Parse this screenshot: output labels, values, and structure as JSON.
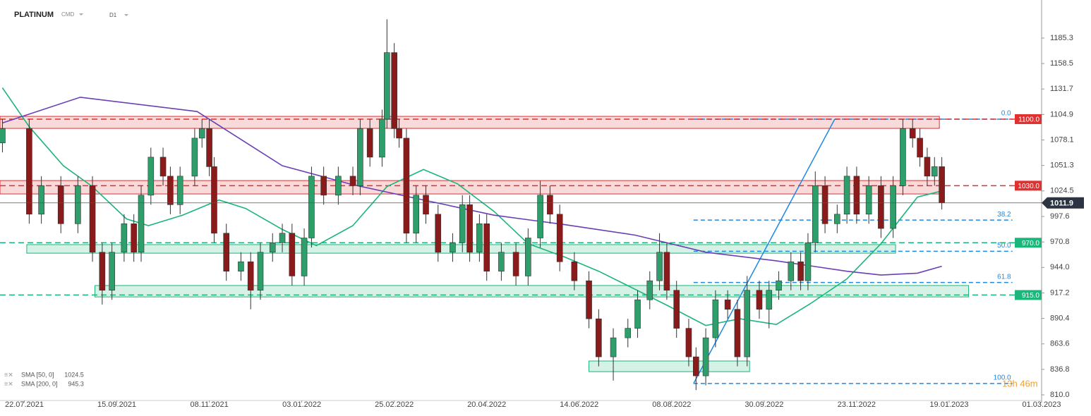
{
  "chart_data": {
    "type": "candlestick",
    "header": {
      "symbol": "PLATINUM",
      "market": "CMD",
      "interval": "D1"
    },
    "countdown": "13h 46m",
    "up_color": "#2e9e6b",
    "down_color": "#8b1a1a",
    "x": [
      -9,
      2,
      7,
      15,
      22,
      28,
      32,
      36,
      41,
      45,
      48,
      52,
      57,
      60,
      64,
      70,
      73,
      76,
      78,
      83,
      89,
      93,
      97,
      102,
      106,
      110,
      115,
      118,
      123,
      129,
      135,
      138,
      142,
      147,
      149,
      152,
      154,
      157,
      161,
      165,
      170,
      176,
      180,
      183,
      187,
      190,
      196,
      202,
      207,
      212,
      216,
      220,
      226,
      232,
      236,
      242,
      248,
      252,
      257,
      261,
      264,
      268,
      273,
      276,
      280,
      284,
      289,
      293,
      297,
      302,
      306,
      310,
      315,
      319,
      322,
      325,
      329,
      334,
      338,
      342,
      347,
      352,
      357,
      361,
      365,
      368,
      371,
      374,
      377
    ],
    "open": [
      1075,
      1090,
      1000,
      1030,
      990,
      1030,
      960,
      920,
      960,
      990,
      960,
      1020,
      1060,
      1040,
      1010,
      1040,
      1080,
      1090,
      1050,
      980,
      940,
      950,
      920,
      960,
      970,
      980,
      935,
      975,
      1040,
      1020,
      1040,
      1030,
      1090,
      1060,
      1100,
      1170,
      1090,
      1080,
      980,
      1020,
      1000,
      960,
      970,
      1010,
      960,
      990,
      940,
      960,
      935,
      975,
      1020,
      1000,
      950,
      930,
      890,
      850,
      870,
      880,
      910,
      930,
      960,
      920,
      880,
      850,
      830,
      870,
      910,
      900,
      850,
      920,
      900,
      920,
      930,
      950,
      930,
      970,
      1030,
      990,
      1000,
      1040,
      1000,
      1030,
      985,
      1030,
      1090,
      1080,
      1060,
      1040,
      1050
    ],
    "high": [
      1100,
      1100,
      1040,
      1040,
      1040,
      1040,
      970,
      970,
      1000,
      1000,
      1030,
      1070,
      1070,
      1050,
      1050,
      1090,
      1100,
      1100,
      1060,
      990,
      960,
      960,
      970,
      980,
      990,
      990,
      985,
      1050,
      1050,
      1050,
      1050,
      1100,
      1100,
      1110,
      1205,
      1180,
      1100,
      1090,
      1030,
      1030,
      1010,
      980,
      1020,
      1020,
      1000,
      1000,
      970,
      970,
      985,
      1035,
      1030,
      1010,
      960,
      940,
      900,
      880,
      890,
      920,
      940,
      980,
      970,
      930,
      890,
      860,
      880,
      920,
      920,
      910,
      935,
      930,
      930,
      940,
      960,
      960,
      980,
      1045,
      1040,
      1010,
      1050,
      1050,
      1040,
      1040,
      1040,
      1100,
      1100,
      1090,
      1070,
      1060,
      1060
    ],
    "low": [
      1065,
      990,
      990,
      980,
      980,
      950,
      905,
      910,
      950,
      950,
      950,
      1010,
      1030,
      1000,
      1000,
      1030,
      1070,
      1040,
      970,
      930,
      930,
      900,
      910,
      950,
      960,
      925,
      925,
      965,
      1010,
      1010,
      1020,
      1020,
      1050,
      1050,
      1090,
      1080,
      1070,
      970,
      970,
      990,
      950,
      950,
      960,
      950,
      950,
      930,
      930,
      925,
      925,
      965,
      990,
      940,
      920,
      880,
      840,
      825,
      860,
      870,
      900,
      920,
      910,
      870,
      840,
      815,
      820,
      860,
      890,
      840,
      840,
      890,
      880,
      910,
      920,
      920,
      920,
      960,
      980,
      980,
      990,
      990,
      990,
      975,
      975,
      1020,
      1070,
      1050,
      1030,
      1030,
      1005
    ],
    "close": [
      1090,
      1000,
      1030,
      990,
      1030,
      960,
      920,
      960,
      990,
      960,
      1020,
      1060,
      1040,
      1010,
      1040,
      1080,
      1090,
      1050,
      980,
      940,
      950,
      920,
      960,
      970,
      980,
      935,
      975,
      1040,
      1020,
      1040,
      1030,
      1090,
      1060,
      1100,
      1170,
      1090,
      1080,
      980,
      1020,
      1000,
      960,
      970,
      1010,
      960,
      990,
      940,
      960,
      935,
      975,
      1020,
      1000,
      950,
      930,
      890,
      850,
      870,
      880,
      910,
      930,
      960,
      920,
      880,
      850,
      830,
      870,
      910,
      900,
      850,
      920,
      900,
      920,
      930,
      950,
      930,
      970,
      1030,
      990,
      1000,
      1040,
      1000,
      1030,
      985,
      1030,
      1090,
      1080,
      1060,
      1040,
      1050,
      1011.9
    ],
    "series": [
      {
        "name": "SMA [50, 0]",
        "color": "#1cb57a",
        "x": [
          -9,
          2,
          16,
          28,
          42,
          51,
          65,
          80,
          91,
          106,
          120,
          135,
          149,
          164,
          178,
          193,
          207,
          222,
          236,
          251,
          265,
          280,
          294,
          309,
          323,
          338,
          352,
          367,
          377
        ],
        "values": [
          1133,
          1092,
          1051,
          1029,
          995,
          988,
          999,
          1015,
          1006,
          984,
          967,
          988,
          1029,
          1047,
          1032,
          1003,
          969,
          955,
          940,
          921,
          903,
          883,
          890,
          884,
          906,
          932,
          969,
          1018,
          1024.5
        ]
      },
      {
        "name": "SMA [200, 0]",
        "color": "#6a3fb5",
        "x": [
          -9,
          23,
          71,
          106,
          135,
          164,
          193,
          222,
          251,
          280,
          309,
          338,
          352,
          367,
          377
        ],
        "values": [
          1096,
          1123,
          1108,
          1051,
          1031,
          1015,
          999,
          989,
          978,
          960,
          951,
          940,
          936,
          938,
          945.3
        ]
      }
    ],
    "zones": [
      {
        "color": "#e03030",
        "x0": -10,
        "x1": 376,
        "y0": 1090.3,
        "y1": 1102.9
      },
      {
        "color": "#e03030",
        "x0": -10,
        "x1": 376,
        "y0": 1021.3,
        "y1": 1035.4
      },
      {
        "color": "#1cb57a",
        "x0": 1,
        "x1": 358,
        "y0": 959,
        "y1": 968
      },
      {
        "color": "#1cb57a",
        "x0": 29,
        "x1": 388,
        "y0": 913,
        "y1": 925
      },
      {
        "color": "#1cb57a",
        "x0": 232,
        "x1": 298,
        "y0": 834.4,
        "y1": 845.6
      }
    ],
    "levels": [
      {
        "value": 1100,
        "label": "1100.0",
        "color": "#e03030"
      },
      {
        "value": 1030,
        "label": "1030.0",
        "color": "#e03030"
      },
      {
        "value": 970,
        "label": "970.0",
        "color": "#1cb57a"
      },
      {
        "value": 915,
        "label": "915.0",
        "color": "#1cb57a"
      }
    ],
    "fib": {
      "color": "#1e88e5",
      "x0": 275,
      "p0": 822,
      "x1": 333,
      "p1": 1100,
      "x_end": 406,
      "levels": [
        {
          "label": "0.0",
          "value": 1100
        },
        {
          "label": "38.2",
          "value": 993.8
        },
        {
          "label": "50.0",
          "value": 961
        },
        {
          "label": "61.8",
          "value": 928.2
        },
        {
          "label": "100.0",
          "value": 822
        }
      ]
    },
    "xlim": [
      -10,
      418
    ],
    "ylim": [
      806.3,
      1225.3
    ],
    "xticks": [
      {
        "value": 0,
        "label": "22.07.2021"
      },
      {
        "value": 38,
        "label": "15.09.2021"
      },
      {
        "value": 76,
        "label": "08.11.2021"
      },
      {
        "value": 114,
        "label": "03.01.2022"
      },
      {
        "value": 152,
        "label": "25.02.2022"
      },
      {
        "value": 190,
        "label": "20.04.2022"
      },
      {
        "value": 228,
        "label": "14.06.2022"
      },
      {
        "value": 266,
        "label": "08.08.2022"
      },
      {
        "value": 304,
        "label": "30.09.2022"
      },
      {
        "value": 342,
        "label": "23.11.2022"
      },
      {
        "value": 380,
        "label": "19.01.2023"
      },
      {
        "value": 418,
        "label": "01.03.2023"
      }
    ],
    "yticks": [
      1185.3,
      1158.5,
      1131.7,
      1104.9,
      1078.1,
      1051.3,
      1024.5,
      997.6,
      970.8,
      {
        "value": 944,
        "label": "944.0"
      },
      917.2,
      890.4,
      863.6,
      836.8,
      {
        "value": 810,
        "label": "810.0"
      }
    ]
  }
}
